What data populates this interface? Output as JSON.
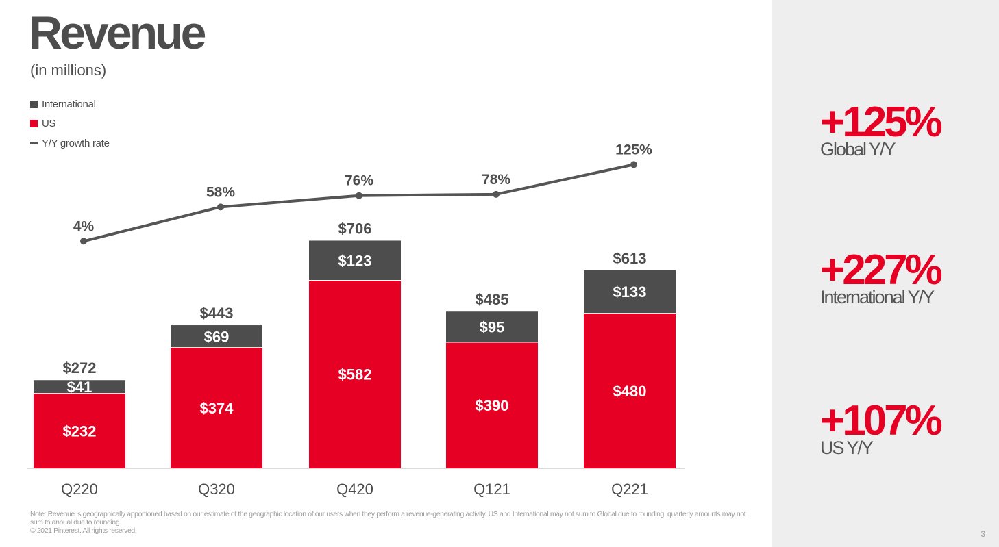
{
  "title": "Revenue",
  "subtitle": "(in millions)",
  "legend": {
    "international": "International",
    "us": "US",
    "growth": "Y/Y growth rate"
  },
  "colors": {
    "international": "#4d4d4d",
    "us": "#e60023",
    "growth_line": "#555555",
    "accent": "#e60023",
    "panel_bg": "#eeeeee"
  },
  "chart_data": {
    "type": "bar",
    "stacked": true,
    "categories": [
      "Q220",
      "Q320",
      "Q420",
      "Q121",
      "Q221"
    ],
    "series": [
      {
        "name": "US",
        "values": [
          232,
          374,
          582,
          390,
          480
        ],
        "labels": [
          "$232",
          "$374",
          "$582",
          "$390",
          "$480"
        ]
      },
      {
        "name": "International",
        "values": [
          41,
          69,
          123,
          95,
          133
        ],
        "labels": [
          "$41",
          "$69",
          "$123",
          "$95",
          "$133"
        ]
      }
    ],
    "totals": [
      272,
      443,
      706,
      485,
      613
    ],
    "total_labels": [
      "$272",
      "$443",
      "$706",
      "$485",
      "$613"
    ],
    "growth_rate": {
      "name": "Y/Y growth rate",
      "values": [
        4,
        58,
        76,
        78,
        125
      ],
      "labels": [
        "4%",
        "58%",
        "76%",
        "78%",
        "125%"
      ]
    },
    "title": "Revenue",
    "subtitle": "(in millions)",
    "legend_position": "top-left",
    "grid": false
  },
  "stats": [
    {
      "value": "+125%",
      "label": "Global Y/Y"
    },
    {
      "value": "+227%",
      "label": "International Y/Y"
    },
    {
      "value": "+107%",
      "label": "US Y/Y"
    }
  ],
  "note": "Note: Revenue is geographically apportioned based on our estimate of the geographic location of our users when they perform a revenue-generating activity. US and International may not sum to Global due to rounding; quarterly amounts may not sum to annual due to rounding.",
  "copyright": "© 2021 Pinterest. All rights reserved.",
  "page_number": "3"
}
